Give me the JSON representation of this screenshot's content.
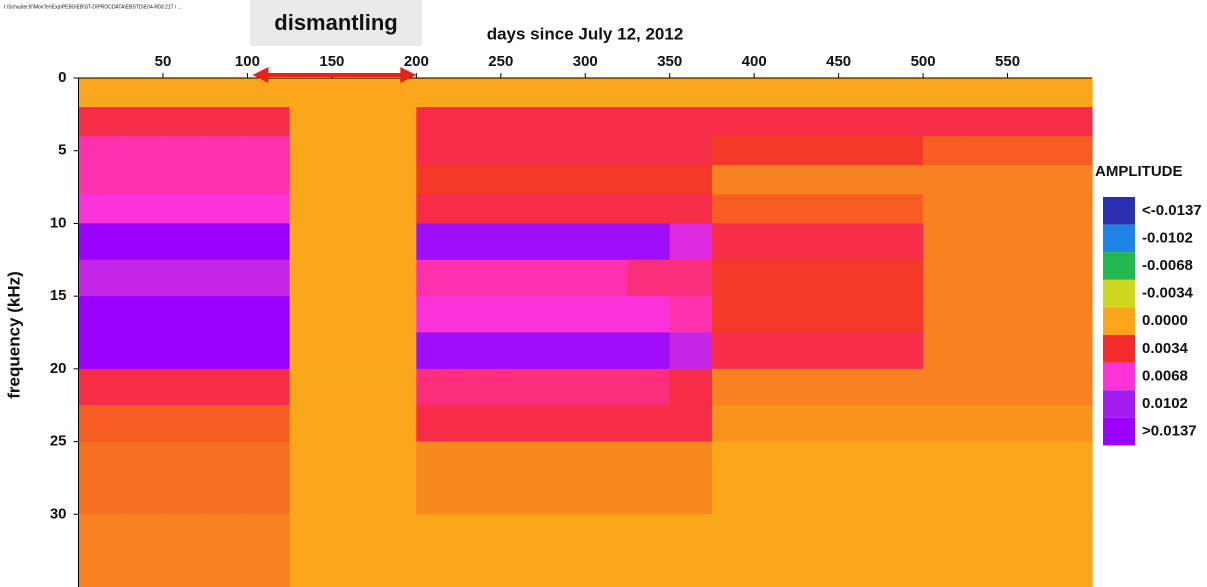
{
  "chart_data": {
    "type": "heatmap",
    "file_path": "I:\\Schuster.K\\MonTer\\Exp\\PEBS\\EB\\ST-D\\PROCDATA\\EBSTD\\E04-R03.21T / ...",
    "title": "days since July 12, 2012",
    "y_label": "frequency (kHz)",
    "annotation": {
      "text": "dismantling",
      "arrow": [
        103,
        200
      ],
      "color": "#e8221a"
    },
    "x_edges": [
      0,
      25,
      50,
      75,
      100,
      125,
      150,
      175,
      200,
      225,
      250,
      275,
      300,
      325,
      350,
      375,
      400,
      425,
      450,
      475,
      500,
      525,
      550,
      575,
      600
    ],
    "y_edges": [
      0,
      2,
      4,
      6,
      8,
      10,
      12.5,
      15,
      17.5,
      20,
      22.5,
      25,
      30,
      35
    ],
    "z": [
      [
        0,
        0,
        0,
        0,
        0,
        0,
        0,
        0,
        0,
        0,
        0,
        0,
        0,
        0,
        0,
        0,
        0,
        0,
        0,
        0,
        0,
        0,
        0,
        0
      ],
      [
        0.004,
        0.004,
        0.004,
        0.004,
        0.004,
        0,
        0,
        0,
        0.004,
        0.004,
        0.004,
        0.004,
        0.004,
        0.004,
        0.004,
        0.004,
        0.004,
        0.004,
        0.004,
        0.004,
        0.004,
        0.004,
        0.004,
        0.004
      ],
      [
        0.006,
        0.006,
        0.006,
        0.006,
        0.006,
        0,
        0,
        0,
        0.004,
        0.004,
        0.004,
        0.004,
        0.004,
        0.004,
        0.004,
        0.003,
        0.003,
        0.003,
        0.003,
        0.003,
        0.002,
        0.002,
        0.002,
        0.002
      ],
      [
        0.006,
        0.006,
        0.006,
        0.006,
        0.006,
        0,
        0,
        0,
        0.003,
        0.003,
        0.003,
        0.003,
        0.003,
        0.003,
        0.003,
        0.001,
        0.001,
        0.001,
        0.001,
        0.001,
        0.001,
        0.001,
        0.001,
        0.001
      ],
      [
        0.007,
        0.007,
        0.007,
        0.007,
        0.007,
        0,
        0,
        0,
        0.004,
        0.004,
        0.004,
        0.004,
        0.004,
        0.004,
        0.004,
        0.002,
        0.002,
        0.002,
        0.002,
        0.002,
        0.001,
        0.001,
        0.001,
        0.001
      ],
      [
        0.014,
        0.014,
        0.014,
        0.014,
        0.014,
        0,
        0,
        0,
        0.012,
        0.012,
        0.012,
        0.012,
        0.012,
        0.012,
        0.008,
        0.004,
        0.004,
        0.004,
        0.004,
        0.004,
        0.001,
        0.001,
        0.001,
        0.001
      ],
      [
        0.009,
        0.009,
        0.009,
        0.009,
        0.009,
        0,
        0,
        0,
        0.006,
        0.006,
        0.006,
        0.006,
        0.006,
        0.005,
        0.005,
        0.003,
        0.003,
        0.003,
        0.003,
        0.003,
        0.001,
        0.001,
        0.001,
        0.001
      ],
      [
        0.014,
        0.014,
        0.014,
        0.014,
        0.014,
        0,
        0,
        0,
        0.007,
        0.007,
        0.007,
        0.007,
        0.007,
        0.007,
        0.006,
        0.003,
        0.003,
        0.003,
        0.003,
        0.003,
        0.001,
        0.001,
        0.001,
        0.001
      ],
      [
        0.014,
        0.014,
        0.014,
        0.014,
        0.014,
        0,
        0,
        0,
        0.012,
        0.012,
        0.012,
        0.012,
        0.012,
        0.012,
        0.009,
        0.004,
        0.004,
        0.004,
        0.004,
        0.004,
        0.001,
        0.001,
        0.001,
        0.001
      ],
      [
        0.004,
        0.004,
        0.004,
        0.004,
        0.004,
        0,
        0,
        0,
        0.005,
        0.005,
        0.005,
        0.005,
        0.005,
        0.005,
        0.004,
        0.001,
        0.001,
        0.001,
        0.001,
        0.001,
        0.001,
        0.001,
        0.001,
        0.001
      ],
      [
        0.002,
        0.002,
        0.002,
        0.002,
        0.002,
        0,
        0,
        0,
        0.004,
        0.004,
        0.004,
        0.004,
        0.004,
        0.004,
        0.004,
        0.0005,
        0.0005,
        0.0005,
        0.0005,
        0.0005,
        0.0005,
        0.0005,
        0.0005,
        0.0005
      ],
      [
        0.0015,
        0.0015,
        0.0015,
        0.0015,
        0.0015,
        0,
        0,
        0,
        0.0008,
        0.0008,
        0.0008,
        0.0008,
        0.0008,
        0.0008,
        0.0008,
        0,
        0,
        0,
        0,
        0,
        0,
        0,
        0,
        0
      ],
      [
        0.001,
        0.001,
        0.001,
        0.001,
        0.001,
        0,
        0,
        0,
        0,
        0,
        0,
        0,
        0,
        0,
        0,
        0,
        0,
        0,
        0,
        0,
        0,
        0,
        0,
        0
      ]
    ],
    "xlim": [
      0,
      600
    ],
    "xticks": [
      50,
      100,
      150,
      200,
      250,
      300,
      350,
      400,
      450,
      500,
      550
    ],
    "ylim": [
      0,
      35
    ],
    "yticks": [
      0,
      5,
      10,
      15,
      20,
      25,
      30
    ],
    "y_reversed": true,
    "colorbar": {
      "title": "AMPLITUDE",
      "ticks": [
        {
          "value": -0.0137,
          "label": "<-0.0137"
        },
        {
          "value": -0.0102,
          "label": "-0.0102"
        },
        {
          "value": -0.0068,
          "label": "-0.0068"
        },
        {
          "value": -0.0034,
          "label": "-0.0034"
        },
        {
          "value": 0,
          "label": "0.0000"
        },
        {
          "value": 0.0034,
          "label": "0.0034"
        },
        {
          "value": 0.0068,
          "label": "0.0068"
        },
        {
          "value": 0.0102,
          "label": "0.0102"
        },
        {
          "value": 0.0137,
          "label": ">0.0137"
        }
      ],
      "colors": [
        "#2a2fb0",
        "#1f84e8",
        "#23b94e",
        "#cfd81e",
        "#f9a61a",
        "#f52a2a",
        "#ff33d6",
        "#a41df0",
        "#9a00ff"
      ]
    }
  }
}
